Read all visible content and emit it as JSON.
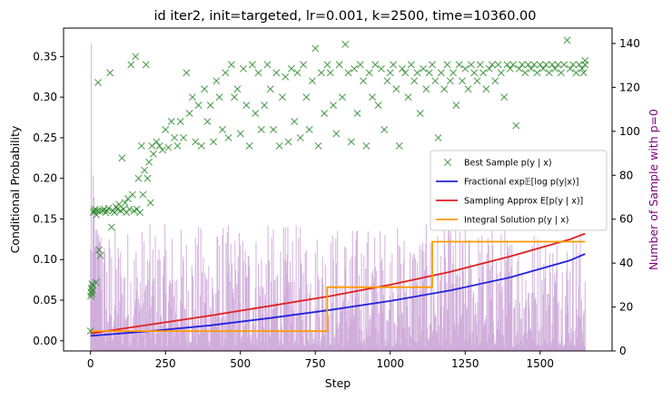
{
  "chart_data": {
    "type": "line",
    "title": "id iter2, init=targeted, lr=0.001, k=2500, time=10360.00",
    "xlabel": "Step",
    "ylabel": "Conditional Probability",
    "y2label": "Number of Sample with p=0",
    "xlim": [
      -90,
      1740
    ],
    "ylim": [
      -0.0125,
      0.385
    ],
    "y2lim": [
      0,
      147
    ],
    "xticks": [
      "0",
      "250",
      "500",
      "750",
      "1000",
      "1250",
      "1500"
    ],
    "xtick_values": [
      0,
      250,
      500,
      750,
      1000,
      1250,
      1500
    ],
    "yticks": [
      "0.00",
      "0.05",
      "0.10",
      "0.15",
      "0.20",
      "0.25",
      "0.30",
      "0.35"
    ],
    "ytick_values": [
      0,
      0.05,
      0.1,
      0.15,
      0.2,
      0.25,
      0.3,
      0.35
    ],
    "y2ticks": [
      "0",
      "20",
      "40",
      "60",
      "80",
      "100",
      "120",
      "140"
    ],
    "y2tick_values": [
      0,
      20,
      40,
      60,
      80,
      100,
      120,
      140
    ],
    "legend_position": "center-right",
    "legend": [
      {
        "label": "Best Sample p(y | x)",
        "marker": "x",
        "color": "#2e8b2e"
      },
      {
        "label": "Fractional exp𝔼[log p(y|x)]",
        "marker": "line",
        "color": "#2222dd"
      },
      {
        "label": "Sampling Approx E[p(y | x)]",
        "marker": "line",
        "color": "#e02020"
      },
      {
        "label": "Integral Solution p(y | x)",
        "marker": "line",
        "color": "#ff9900"
      }
    ],
    "series": [
      {
        "name": "Fractional exp𝔼[log p(y|x)]",
        "color": "#2222dd",
        "x": [
          0,
          200,
          400,
          600,
          800,
          1000,
          1200,
          1400,
          1600,
          1650
        ],
        "values": [
          0.006,
          0.012,
          0.019,
          0.028,
          0.038,
          0.049,
          0.062,
          0.078,
          0.099,
          0.107
        ]
      },
      {
        "name": "Sampling Approx E[p(y | x)]",
        "color": "#e02020",
        "x": [
          0,
          200,
          400,
          600,
          800,
          1000,
          1200,
          1400,
          1600,
          1650
        ],
        "values": [
          0.009,
          0.02,
          0.031,
          0.043,
          0.055,
          0.069,
          0.085,
          0.104,
          0.125,
          0.132
        ]
      },
      {
        "name": "Integral Solution p(y | x)",
        "color": "#ff9900",
        "x": [
          0,
          790,
          790,
          1140,
          1140,
          1650
        ],
        "values": [
          0.012,
          0.012,
          0.066,
          0.066,
          0.122,
          0.122
        ]
      }
    ],
    "best_sample": {
      "name": "Best Sample p(y | x)",
      "color": "#2e8b2e",
      "points": [
        [
          0,
          0.012
        ],
        [
          1,
          0.055
        ],
        [
          2,
          0.06
        ],
        [
          3,
          0.065
        ],
        [
          4,
          0.058
        ],
        [
          5,
          0.07
        ],
        [
          6,
          0.062
        ],
        [
          8,
          0.068
        ],
        [
          10,
          0.158
        ],
        [
          12,
          0.16
        ],
        [
          15,
          0.162
        ],
        [
          18,
          0.072
        ],
        [
          20,
          0.155
        ],
        [
          22,
          0.16
        ],
        [
          25,
          0.318
        ],
        [
          28,
          0.112
        ],
        [
          30,
          0.16
        ],
        [
          33,
          0.105
        ],
        [
          40,
          0.16
        ],
        [
          45,
          0.162
        ],
        [
          50,
          0.158
        ],
        [
          55,
          0.16
        ],
        [
          60,
          0.163
        ],
        [
          65,
          0.33
        ],
        [
          70,
          0.14
        ],
        [
          75,
          0.16
        ],
        [
          80,
          0.158
        ],
        [
          85,
          0.165
        ],
        [
          90,
          0.162
        ],
        [
          95,
          0.168
        ],
        [
          100,
          0.16
        ],
        [
          105,
          0.225
        ],
        [
          110,
          0.162
        ],
        [
          115,
          0.17
        ],
        [
          120,
          0.158
        ],
        [
          125,
          0.175
        ],
        [
          130,
          0.162
        ],
        [
          135,
          0.34
        ],
        [
          140,
          0.18
        ],
        [
          145,
          0.16
        ],
        [
          150,
          0.35
        ],
        [
          155,
          0.162
        ],
        [
          160,
          0.2
        ],
        [
          165,
          0.158
        ],
        [
          170,
          0.24
        ],
        [
          175,
          0.18
        ],
        [
          180,
          0.21
        ],
        [
          185,
          0.34
        ],
        [
          190,
          0.2
        ],
        [
          195,
          0.22
        ],
        [
          200,
          0.17
        ],
        [
          205,
          0.24
        ],
        [
          210,
          0.23
        ],
        [
          220,
          0.245
        ],
        [
          230,
          0.24
        ],
        [
          240,
          0.235
        ],
        [
          250,
          0.26
        ],
        [
          260,
          0.238
        ],
        [
          270,
          0.27
        ],
        [
          280,
          0.25
        ],
        [
          290,
          0.24
        ],
        [
          300,
          0.27
        ],
        [
          310,
          0.25
        ],
        [
          320,
          0.33
        ],
        [
          330,
          0.28
        ],
        [
          340,
          0.3
        ],
        [
          350,
          0.245
        ],
        [
          360,
          0.29
        ],
        [
          370,
          0.24
        ],
        [
          380,
          0.31
        ],
        [
          390,
          0.27
        ],
        [
          400,
          0.29
        ],
        [
          410,
          0.245
        ],
        [
          420,
          0.32
        ],
        [
          430,
          0.3
        ],
        [
          440,
          0.26
        ],
        [
          450,
          0.33
        ],
        [
          460,
          0.25
        ],
        [
          470,
          0.34
        ],
        [
          480,
          0.3
        ],
        [
          490,
          0.31
        ],
        [
          500,
          0.255
        ],
        [
          510,
          0.335
        ],
        [
          520,
          0.29
        ],
        [
          530,
          0.24
        ],
        [
          540,
          0.34
        ],
        [
          550,
          0.28
        ],
        [
          560,
          0.33
        ],
        [
          570,
          0.26
        ],
        [
          580,
          0.29
        ],
        [
          590,
          0.34
        ],
        [
          600,
          0.31
        ],
        [
          610,
          0.26
        ],
        [
          620,
          0.33
        ],
        [
          630,
          0.24
        ],
        [
          640,
          0.3
        ],
        [
          650,
          0.325
        ],
        [
          660,
          0.245
        ],
        [
          670,
          0.335
        ],
        [
          680,
          0.27
        ],
        [
          690,
          0.33
        ],
        [
          700,
          0.25
        ],
        [
          710,
          0.34
        ],
        [
          720,
          0.3
        ],
        [
          730,
          0.26
        ],
        [
          740,
          0.32
        ],
        [
          750,
          0.36
        ],
        [
          760,
          0.24
        ],
        [
          770,
          0.33
        ],
        [
          780,
          0.28
        ],
        [
          790,
          0.34
        ],
        [
          800,
          0.33
        ],
        [
          810,
          0.29
        ],
        [
          820,
          0.255
        ],
        [
          830,
          0.34
        ],
        [
          840,
          0.3
        ],
        [
          850,
          0.365
        ],
        [
          860,
          0.33
        ],
        [
          870,
          0.245
        ],
        [
          880,
          0.335
        ],
        [
          890,
          0.28
        ],
        [
          900,
          0.34
        ],
        [
          910,
          0.32
        ],
        [
          920,
          0.24
        ],
        [
          930,
          0.33
        ],
        [
          940,
          0.3
        ],
        [
          950,
          0.34
        ],
        [
          960,
          0.29
        ],
        [
          970,
          0.335
        ],
        [
          980,
          0.26
        ],
        [
          990,
          0.32
        ],
        [
          1000,
          0.33
        ],
        [
          1010,
          0.34
        ],
        [
          1020,
          0.31
        ],
        [
          1030,
          0.24
        ],
        [
          1040,
          0.335
        ],
        [
          1050,
          0.33
        ],
        [
          1060,
          0.3
        ],
        [
          1070,
          0.34
        ],
        [
          1080,
          0.32
        ],
        [
          1090,
          0.33
        ],
        [
          1100,
          0.28
        ],
        [
          1110,
          0.335
        ],
        [
          1120,
          0.31
        ],
        [
          1130,
          0.33
        ],
        [
          1140,
          0.34
        ],
        [
          1150,
          0.32
        ],
        [
          1160,
          0.25
        ],
        [
          1170,
          0.33
        ],
        [
          1180,
          0.31
        ],
        [
          1190,
          0.34
        ],
        [
          1200,
          0.32
        ],
        [
          1210,
          0.33
        ],
        [
          1220,
          0.29
        ],
        [
          1230,
          0.34
        ],
        [
          1240,
          0.32
        ],
        [
          1250,
          0.335
        ],
        [
          1260,
          0.31
        ],
        [
          1270,
          0.34
        ],
        [
          1280,
          0.33
        ],
        [
          1290,
          0.32
        ],
        [
          1300,
          0.34
        ],
        [
          1310,
          0.33
        ],
        [
          1320,
          0.31
        ],
        [
          1330,
          0.335
        ],
        [
          1340,
          0.34
        ],
        [
          1350,
          0.32
        ],
        [
          1360,
          0.34
        ],
        [
          1370,
          0.33
        ],
        [
          1380,
          0.3
        ],
        [
          1390,
          0.34
        ],
        [
          1400,
          0.335
        ],
        [
          1410,
          0.34
        ],
        [
          1420,
          0.265
        ],
        [
          1430,
          0.335
        ],
        [
          1440,
          0.34
        ],
        [
          1450,
          0.33
        ],
        [
          1460,
          0.34
        ],
        [
          1470,
          0.335
        ],
        [
          1480,
          0.34
        ],
        [
          1490,
          0.33
        ],
        [
          1500,
          0.34
        ],
        [
          1510,
          0.335
        ],
        [
          1520,
          0.34
        ],
        [
          1530,
          0.33
        ],
        [
          1540,
          0.34
        ],
        [
          1550,
          0.335
        ],
        [
          1560,
          0.34
        ],
        [
          1570,
          0.33
        ],
        [
          1580,
          0.34
        ],
        [
          1590,
          0.37
        ],
        [
          1600,
          0.335
        ],
        [
          1610,
          0.34
        ],
        [
          1620,
          0.33
        ],
        [
          1630,
          0.34
        ],
        [
          1640,
          0.335
        ],
        [
          1650,
          0.345
        ],
        [
          1650,
          0.34
        ],
        [
          1645,
          0.33
        ]
      ]
    },
    "zero_sample_bars": {
      "name": "Number of Sample with p=0",
      "color": "#c9a2d6",
      "step_start": 0,
      "step_end": 1650,
      "x_step": 2,
      "count_min": 2,
      "count_max": 58,
      "early_peaks": [
        [
          2,
          140
        ],
        [
          5,
          100
        ],
        [
          8,
          80
        ],
        [
          12,
          70
        ],
        [
          18,
          55
        ],
        [
          30,
          50
        ]
      ]
    }
  }
}
